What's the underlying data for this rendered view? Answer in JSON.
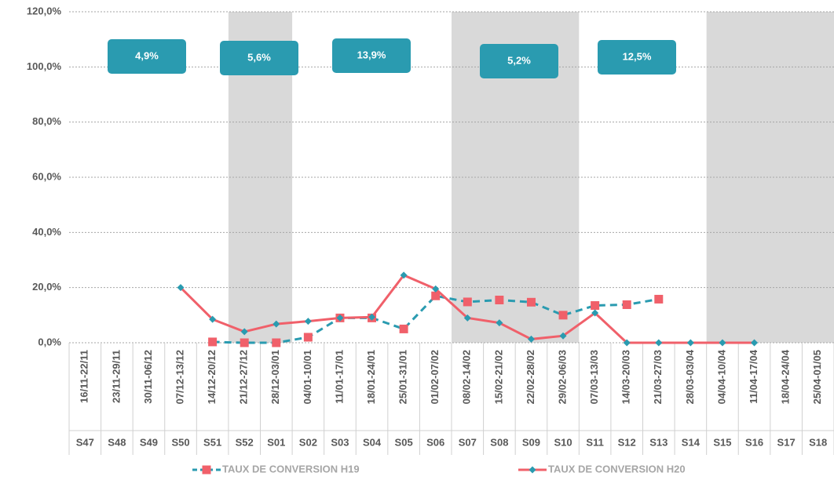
{
  "chart_data": {
    "type": "line",
    "categories": [
      "16/11-22/11",
      "23/11-29/11",
      "30/11-06/12",
      "07/12-13/12",
      "14/12-20/12",
      "21/12-27/12",
      "28/12-03/01",
      "04/01-10/01",
      "11/01-17/01",
      "18/01-24/01",
      "25/01-31/01",
      "01/02-07/02",
      "08/02-14/02",
      "15/02-21/02",
      "22/02-28/02",
      "29/02-06/03",
      "07/03-13/03",
      "14/03-20/03",
      "21/03-27/03",
      "28/03-03/04",
      "04/04-10/04",
      "11/04-17/04",
      "18/04-24/04",
      "25/04-01/05"
    ],
    "weeks": [
      "S47",
      "S48",
      "S49",
      "S50",
      "S51",
      "S52",
      "S01",
      "S02",
      "S03",
      "S04",
      "S05",
      "S06",
      "S07",
      "S08",
      "S09",
      "S10",
      "S11",
      "S12",
      "S13",
      "S14",
      "S15",
      "S16",
      "S17",
      "S18"
    ],
    "series": [
      {
        "name": "TAUX DE CONVERSION H19",
        "color": "#2a9bb0",
        "marker_color": "#f0606a",
        "marker": "square",
        "dashed": true,
        "values": [
          null,
          null,
          null,
          null,
          0.3,
          0,
          0,
          2,
          9,
          9,
          5,
          17,
          14.8,
          15.5,
          14.7,
          10,
          13.5,
          13.8,
          15.8,
          null,
          null,
          null,
          null,
          null
        ]
      },
      {
        "name": "TAUX DE CONVERSION H20",
        "color": "#f0606a",
        "marker_color": "#2a9bb0",
        "marker": "diamond",
        "dashed": false,
        "values": [
          null,
          null,
          null,
          20,
          8.5,
          4,
          6.8,
          7.8,
          9,
          9.3,
          24.5,
          19.5,
          9,
          7.2,
          1.3,
          2.5,
          10.8,
          0,
          0,
          0,
          0,
          0,
          null,
          null
        ]
      }
    ],
    "annotations": [
      "4,9%",
      "5,6%",
      "13,9%",
      "5,2%",
      "12,5%"
    ],
    "ylim": [
      0,
      120
    ],
    "yticks": [
      {
        "value": 0,
        "label": "0,0%"
      },
      {
        "value": 20,
        "label": "20,0%"
      },
      {
        "value": 40,
        "label": "40,0%"
      },
      {
        "value": 60,
        "label": "60,0%"
      },
      {
        "value": 80,
        "label": "80,0%"
      },
      {
        "value": 100,
        "label": "100,0%"
      },
      {
        "value": 120,
        "label": "120,0%"
      }
    ],
    "grid": true
  }
}
